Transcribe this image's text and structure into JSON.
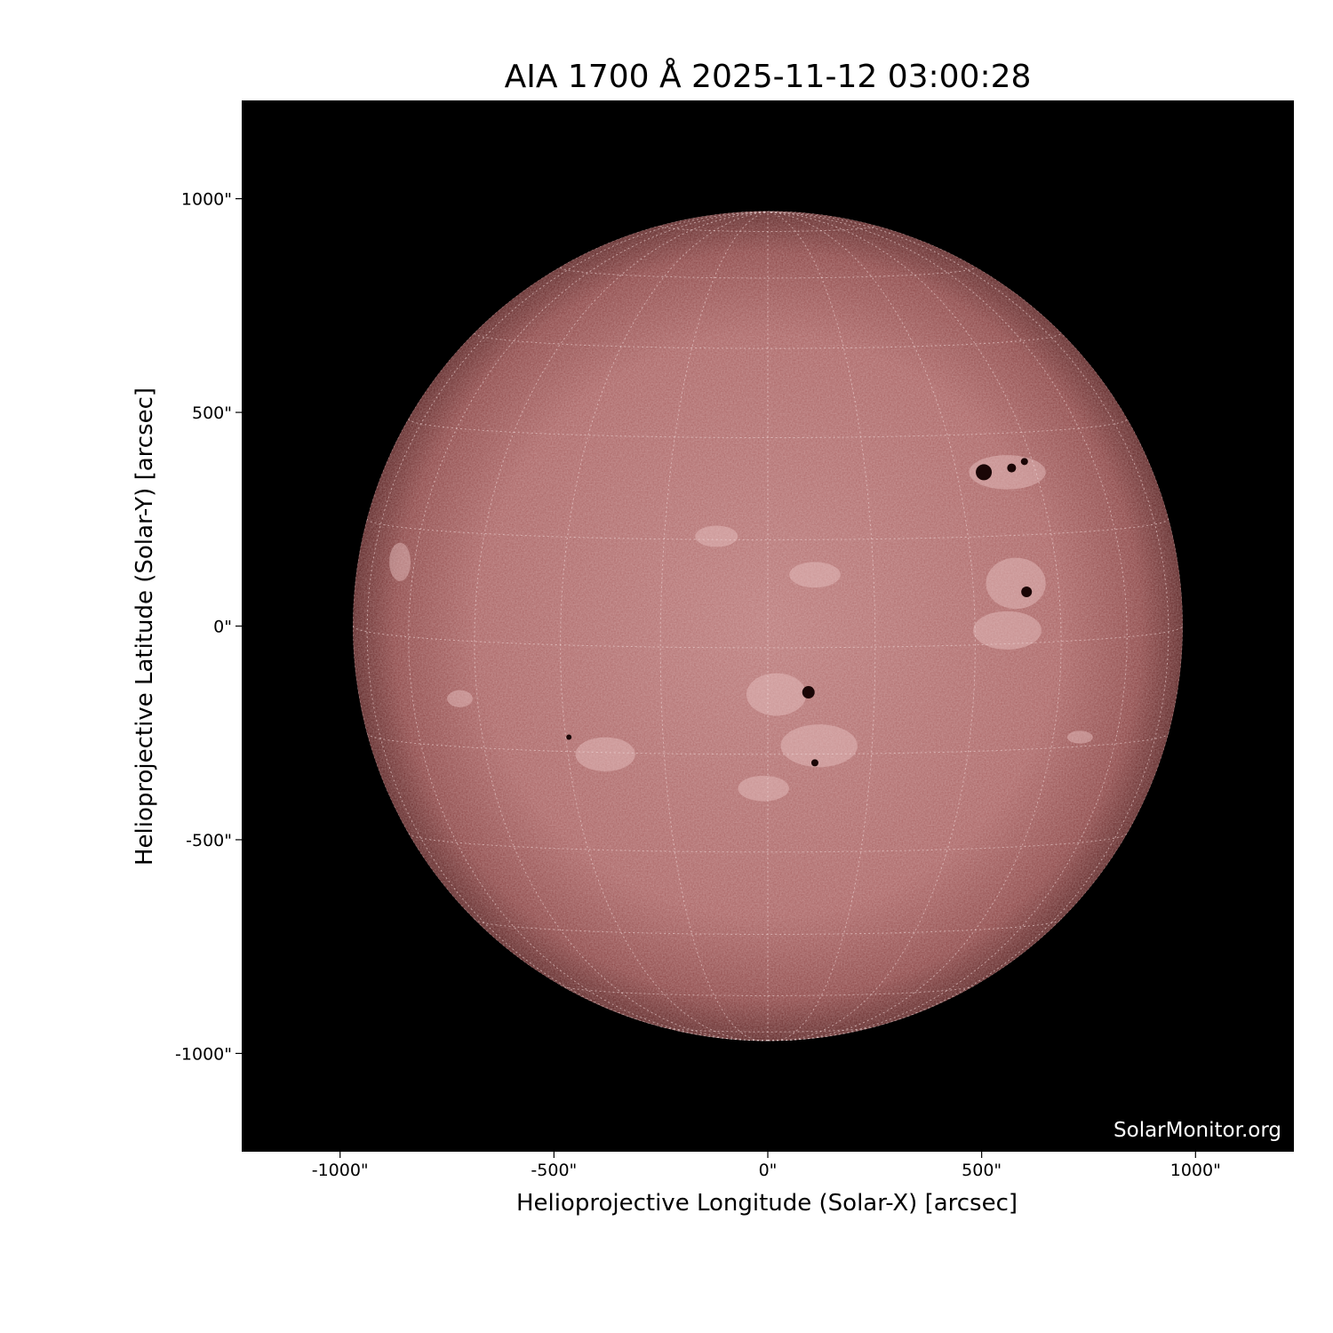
{
  "chart_data": {
    "type": "image",
    "title": "AIA 1700 Å 2025-11-12 03:00:28",
    "xlabel": "Helioprojective Longitude (Solar-X) [arcsec]",
    "ylabel": "Helioprojective Latitude (Solar-Y) [arcsec]",
    "xlim": [
      -1230,
      1230
    ],
    "ylim": [
      -1230,
      1230
    ],
    "xticks": [
      -1000,
      -500,
      0,
      500,
      1000
    ],
    "yticks": [
      -1000,
      -500,
      0,
      500,
      1000
    ],
    "xtick_labels": [
      "-1000\"",
      "-500\"",
      "0\"",
      "500\"",
      "1000\""
    ],
    "ytick_labels": [
      "-1000\"",
      "-500\"",
      "0\"",
      "500\"",
      "1000\""
    ],
    "solar_radius_arcsec": 970,
    "grid_spacing_deg": 15,
    "colormap": "sdoaia1700",
    "disk_color": "#b06a6a",
    "background_color": "#000000",
    "watermark": "SolarMonitor.org"
  }
}
